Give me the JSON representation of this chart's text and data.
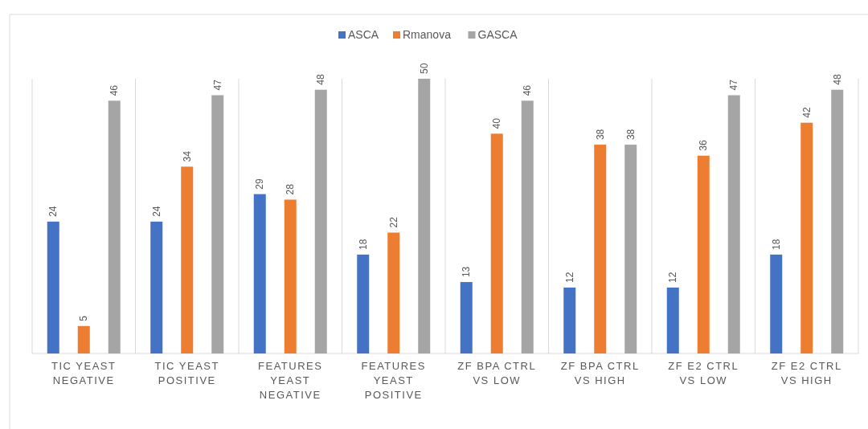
{
  "chart_data": {
    "type": "bar",
    "categories": [
      "TIC YEAST NEGATIVE",
      "TIC YEAST POSITIVE",
      "FEATURES YEAST NEGATIVE",
      "FEATURES YEAST POSITIVE",
      "ZF BPA CTRL VS LOW",
      "ZF BPA CTRL VS HIGH",
      "ZF E2 CTRL VS LOW",
      "ZF E2 CTRL VS HIGH"
    ],
    "series": [
      {
        "name": "ASCA",
        "color": "#4472c4",
        "values": [
          24,
          24,
          29,
          18,
          13,
          12,
          12,
          18
        ]
      },
      {
        "name": "Rmanova",
        "color": "#ed7d31",
        "values": [
          5,
          34,
          28,
          22,
          40,
          38,
          36,
          42
        ]
      },
      {
        "name": "GASCA",
        "color": "#a5a5a5",
        "values": [
          46,
          47,
          48,
          50,
          46,
          38,
          47,
          48
        ]
      }
    ],
    "data_labels": true,
    "legend": "top",
    "grid": "x"
  }
}
